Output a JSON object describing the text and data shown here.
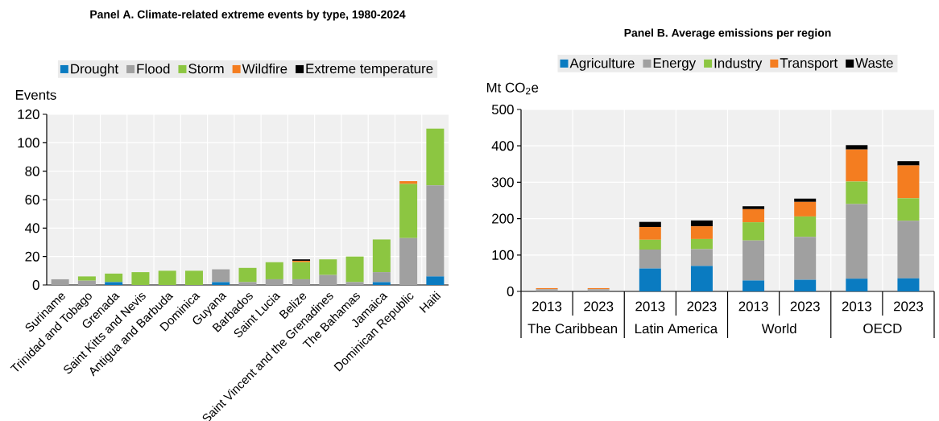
{
  "chart_data": [
    {
      "type": "bar",
      "stacked": true,
      "title": "Panel A. Climate-related extreme events by type, 1980-2024",
      "ylabel": "Events",
      "categories": [
        "Suriname",
        "Trinidad and Tobago",
        "Grenada",
        "Saint Kitts and Nevis",
        "Antigua and Barbuda",
        "Dominica",
        "Guyana",
        "Barbados",
        "Saint Lucia",
        "Belize",
        "Saint Vincent and the Grenadines",
        "The Bahamas",
        "Jamaica",
        "Dominican Republic",
        "Haiti"
      ],
      "series": [
        {
          "name": "Drought",
          "color": "#0a7bc1",
          "values": [
            0,
            0,
            2,
            0,
            0,
            0,
            2,
            0,
            0,
            0,
            0,
            0,
            2,
            0,
            6
          ]
        },
        {
          "name": "Flood",
          "color": "#a0a0a0",
          "values": [
            4,
            3,
            0,
            0,
            0,
            0,
            9,
            2,
            4,
            4,
            7,
            2,
            7,
            33,
            64
          ]
        },
        {
          "name": "Storm",
          "color": "#8cc641",
          "values": [
            0,
            3,
            6,
            9,
            10,
            10,
            0,
            10,
            12,
            12,
            11,
            18,
            23,
            38,
            40
          ]
        },
        {
          "name": "Wildfire",
          "color": "#f47d20",
          "values": [
            0,
            0,
            0,
            0,
            0,
            0,
            0,
            0,
            0,
            1,
            0,
            0,
            0,
            2,
            0
          ]
        },
        {
          "name": "Extreme temperature",
          "color": "#000000",
          "values": [
            0,
            0,
            0,
            0,
            0,
            0,
            0,
            0,
            0,
            1,
            0,
            0,
            0,
            0,
            0
          ]
        }
      ],
      "ylim": [
        0,
        120
      ],
      "yticks": [
        0,
        20,
        40,
        60,
        80,
        100,
        120
      ],
      "grid": true,
      "legend": "top"
    },
    {
      "type": "bar",
      "stacked": true,
      "title": "Panel B. Average emissions per region",
      "ylabel": "Mt CO$_{2}$e",
      "categories": [
        "2013",
        "2023",
        "2013",
        "2023",
        "2013",
        "2023",
        "2013",
        "2023"
      ],
      "annotations": [
        "The Caribbean",
        "Latin America",
        "World",
        "OECD"
      ],
      "series": [
        {
          "name": "Agriculture",
          "color": "#0a7bc1",
          "values": [
            null,
            null,
            63,
            70,
            30,
            32,
            35,
            36
          ]
        },
        {
          "name": "Energy",
          "color": "#a0a0a0",
          "values": [
            6,
            6,
            52,
            46,
            110,
            118,
            205,
            158
          ]
        },
        {
          "name": "Industry",
          "color": "#8cc641",
          "values": [
            null,
            null,
            27,
            28,
            50,
            56,
            62,
            62
          ]
        },
        {
          "name": "Transport",
          "color": "#f47d20",
          "values": [
            3,
            3,
            35,
            35,
            36,
            40,
            88,
            90
          ]
        },
        {
          "name": "Waste",
          "color": "#000000",
          "values": [
            null,
            null,
            14,
            16,
            8,
            9,
            12,
            12
          ]
        }
      ],
      "ylim": [
        0,
        500
      ],
      "yticks": [
        0,
        100,
        200,
        300,
        400,
        500
      ],
      "grid": true,
      "legend": "top"
    }
  ]
}
